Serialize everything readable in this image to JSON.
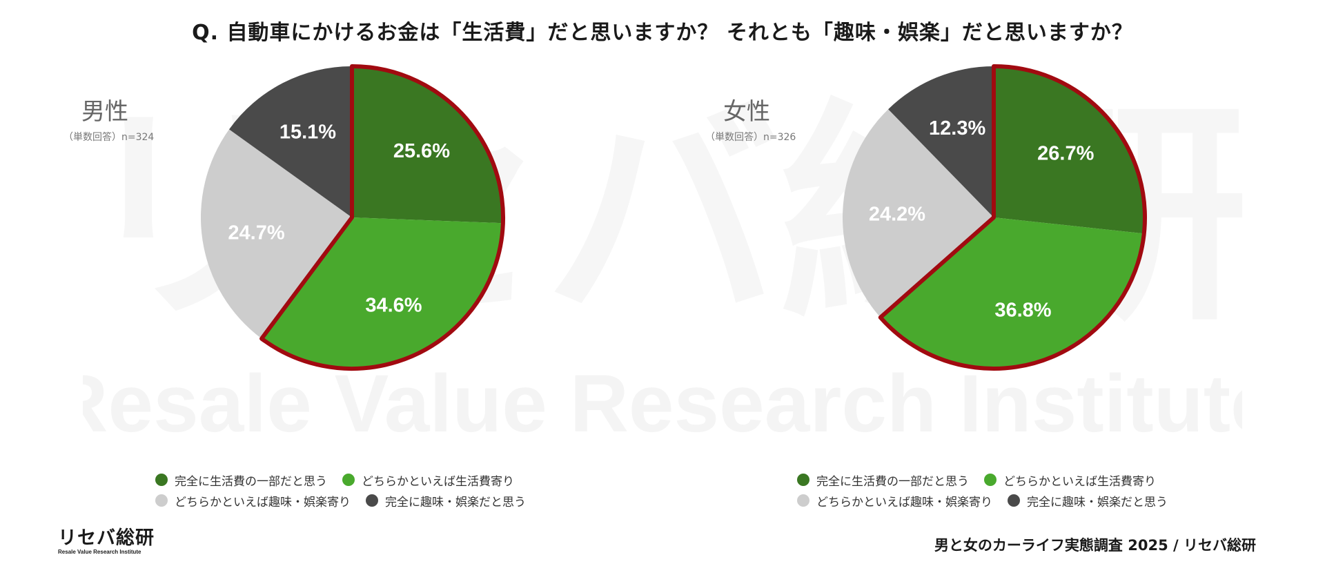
{
  "title": "Q. 自動車にかけるお金は「生活費」だと思いますか？ それとも「趣味・娯楽」だと思いますか？",
  "watermark": {
    "main": "リセバ総研",
    "sub": "Resale Value Research Institute"
  },
  "colors": {
    "dark_green": "#3a7722",
    "bright_green": "#49a92d",
    "light_gray": "#cdcdcd",
    "dark_gray": "#4a4a4a",
    "highlight_border": "#a10a10"
  },
  "legend": {
    "items": [
      {
        "label": "完全に生活費の一部だと思う",
        "color": "#3a7722"
      },
      {
        "label": "どちらかといえば生活費寄り",
        "color": "#49a92d"
      },
      {
        "label": "どちらかといえば趣味・娯楽寄り",
        "color": "#cdcdcd"
      },
      {
        "label": "完全に趣味・娯楽だと思う",
        "color": "#4a4a4a"
      }
    ]
  },
  "chart_data": [
    {
      "type": "pie",
      "title": "男性",
      "subtitle": "（単数回答）n=324",
      "categories": [
        "完全に生活費の一部だと思う",
        "どちらかといえば生活費寄り",
        "どちらかといえば趣味・娯楽寄り",
        "完全に趣味・娯楽だと思う"
      ],
      "values": [
        25.6,
        34.6,
        24.7,
        15.1
      ],
      "labels": [
        "25.6%",
        "34.6%",
        "24.7%",
        "15.1%"
      ],
      "colors": [
        "#3a7722",
        "#49a92d",
        "#cdcdcd",
        "#4a4a4a"
      ],
      "highlighted": [
        0,
        1
      ]
    },
    {
      "type": "pie",
      "title": "女性",
      "subtitle": "（単数回答）n=326",
      "categories": [
        "完全に生活費の一部だと思う",
        "どちらかといえば生活費寄り",
        "どちらかといえば趣味・娯楽寄り",
        "完全に趣味・娯楽だと思う"
      ],
      "values": [
        26.7,
        36.8,
        24.2,
        12.3
      ],
      "labels": [
        "26.7%",
        "36.8%",
        "24.2%",
        "12.3%"
      ],
      "colors": [
        "#3a7722",
        "#49a92d",
        "#cdcdcd",
        "#4a4a4a"
      ],
      "highlighted": [
        0,
        1
      ]
    }
  ],
  "footer": {
    "logo_main": "リセバ総研",
    "logo_sub": "Resale Value Research Institute",
    "credit": "男と女のカーライフ実態調査 2025 / リセバ総研"
  }
}
